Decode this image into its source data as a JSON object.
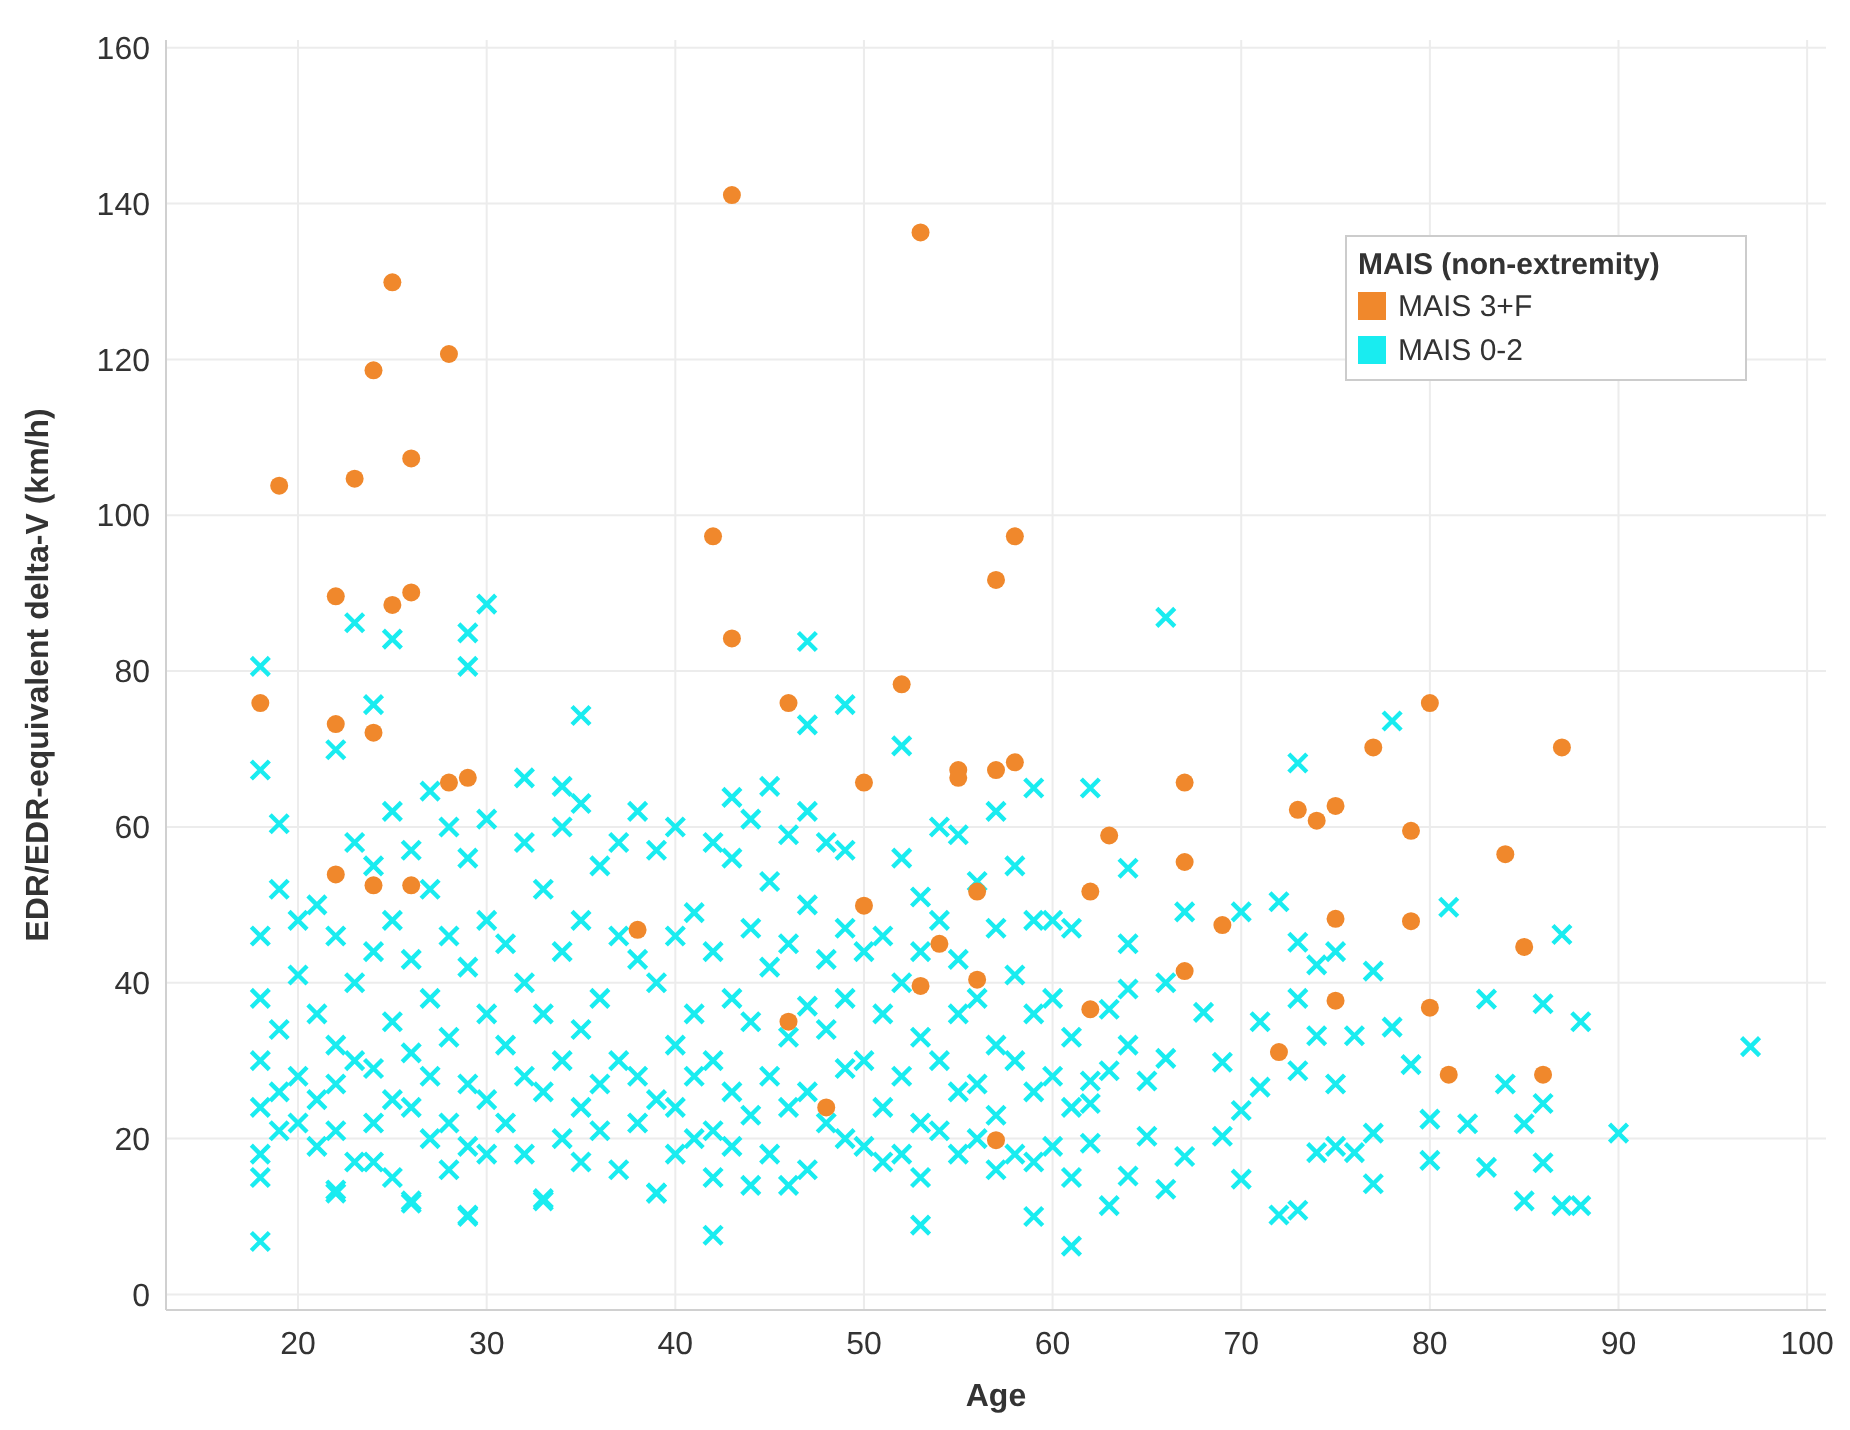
{
  "chart_data": {
    "type": "scatter",
    "xlabel": "Age",
    "ylabel": "EDR/EDR-equivalent delta-V (km/h)",
    "legend_title": "MAIS (non-extremity)",
    "legend": "top right",
    "grid": true,
    "xlim": [
      13,
      101
    ],
    "xticks": [
      20,
      30,
      40,
      50,
      60,
      70,
      80,
      90,
      100
    ],
    "ylim": [
      -2,
      161
    ],
    "yticks": [
      0,
      20,
      40,
      60,
      80,
      100,
      120,
      140,
      160
    ],
    "series": [
      {
        "name": "MAIS 3+F",
        "color": "#f0882c",
        "marker": "circle",
        "x": [
          43,
          53,
          25,
          28,
          24,
          26,
          23,
          19,
          42,
          58,
          57,
          22,
          26,
          25,
          43,
          52,
          18,
          22,
          24,
          46,
          28,
          29,
          50,
          55,
          55,
          57,
          58,
          22,
          24,
          26,
          56,
          62,
          38,
          50,
          54,
          53,
          56,
          62,
          46,
          48,
          57,
          80,
          87,
          77,
          67,
          73,
          74,
          75,
          79,
          84,
          63,
          67,
          69,
          75,
          79,
          85,
          67,
          75,
          80,
          72,
          81,
          86
        ],
        "values": [
          141.1,
          136.3,
          129.9,
          120.7,
          118.6,
          107.3,
          104.7,
          103.8,
          97.3,
          97.3,
          91.7,
          89.6,
          90.1,
          88.5,
          84.2,
          78.3,
          75.9,
          73.2,
          72.1,
          75.9,
          65.7,
          66.3,
          65.7,
          67.3,
          66.3,
          67.3,
          68.3,
          53.9,
          52.5,
          52.5,
          51.7,
          51.7,
          46.8,
          49.9,
          45,
          39.6,
          40.4,
          36.6,
          35,
          24,
          19.8,
          75.9,
          70.2,
          70.2,
          65.7,
          62.2,
          60.8,
          62.7,
          59.5,
          56.5,
          58.9,
          55.5,
          47.4,
          48.2,
          47.9,
          44.6,
          41.5,
          37.7,
          36.8,
          31.1,
          28.2,
          28.2
        ]
      },
      {
        "name": "MAIS 0-2",
        "color": "#19ecf0",
        "marker": "cross",
        "x": [
          30,
          23,
          25,
          29,
          29,
          18,
          47,
          18,
          19,
          24,
          22,
          35,
          47,
          49,
          52,
          18,
          42,
          53,
          59,
          61,
          22,
          26,
          29,
          33,
          39,
          45,
          43,
          32,
          34,
          27,
          59,
          62,
          97,
          90,
          78,
          73,
          66,
          64,
          67,
          70,
          72,
          81,
          87,
          88,
          85,
          88,
          87,
          72,
          73,
          77,
          63,
          83,
          86,
          80,
          66,
          70,
          69,
          78,
          83,
          86,
          77,
          74,
          73,
          75,
          80,
          82,
          85,
          86,
          84,
          79,
          76,
          74,
          71,
          73,
          70,
          71,
          73,
          75,
          77,
          76,
          75,
          74,
          69,
          67,
          65,
          64,
          65,
          66,
          64,
          63,
          62,
          62,
          62,
          64,
          66,
          68,
          63,
          64,
          18,
          18,
          18,
          18,
          18,
          18,
          19,
          19,
          19,
          19,
          20,
          20,
          20,
          20,
          21,
          21,
          21,
          21,
          22,
          22,
          22,
          22,
          22,
          23,
          23,
          23,
          23,
          24,
          24,
          24,
          24,
          24,
          25,
          25,
          25,
          25,
          25,
          26,
          26,
          26,
          26,
          26,
          27,
          27,
          27,
          27,
          28,
          28,
          28,
          28,
          28,
          29,
          29,
          29,
          29,
          29,
          30,
          30,
          30,
          30,
          30,
          31,
          31,
          31,
          32,
          32,
          32,
          32,
          33,
          33,
          33,
          33,
          34,
          34,
          34,
          34,
          35,
          35,
          35,
          35,
          35,
          36,
          36,
          36,
          36,
          37,
          37,
          37,
          37,
          38,
          38,
          38,
          38,
          39,
          39,
          39,
          39,
          40,
          40,
          40,
          40,
          40,
          41,
          41,
          41,
          41,
          42,
          42,
          42,
          42,
          42,
          43,
          43,
          43,
          43,
          44,
          44,
          44,
          44,
          44,
          45,
          45,
          45,
          45,
          46,
          46,
          46,
          46,
          46,
          47,
          47,
          47,
          47,
          47,
          48,
          48,
          48,
          48,
          49,
          49,
          49,
          49,
          49,
          50,
          50,
          50,
          51,
          51,
          51,
          51,
          52,
          52,
          52,
          52,
          53,
          53,
          53,
          53,
          53,
          54,
          54,
          54,
          54,
          55,
          55,
          55,
          55,
          55,
          56,
          56,
          56,
          56,
          57,
          57,
          57,
          57,
          57,
          58,
          58,
          58,
          58,
          59,
          59,
          59,
          59,
          60,
          60,
          60,
          60,
          61,
          61,
          61,
          61
        ],
        "values": [
          88.6,
          86.2,
          84.1,
          84.9,
          80.6,
          80.6,
          83.8,
          67.3,
          60.4,
          75.7,
          69.9,
          74.3,
          73.1,
          75.7,
          70.4,
          6.8,
          7.6,
          8.9,
          10,
          6.2,
          13.4,
          11.7,
          10.2,
          12.3,
          13,
          65.2,
          63.8,
          66.3,
          65.2,
          64.6,
          65,
          65,
          31.8,
          20.7,
          73.6,
          68.2,
          86.9,
          54.7,
          49.1,
          49.1,
          50.4,
          49.7,
          46.2,
          35,
          12,
          11.4,
          11.4,
          10.2,
          10.8,
          14.2,
          11.4,
          16.3,
          16.9,
          17.2,
          13.5,
          14.8,
          29.8,
          34.3,
          37.9,
          37.3,
          41.5,
          42.3,
          45.2,
          44,
          22.5,
          21.9,
          21.9,
          24.5,
          27,
          29.5,
          33.2,
          33.2,
          35,
          38,
          23.6,
          26.6,
          28.7,
          27,
          20.7,
          18.2,
          19,
          18.2,
          20.3,
          17.7,
          20.3,
          15.2,
          27.4,
          30.3,
          32,
          28.7,
          24.5,
          19.4,
          27.4,
          39.2,
          40,
          36.2,
          36.6,
          45,
          46,
          38,
          30,
          24,
          18,
          15,
          52,
          34,
          26,
          21,
          48,
          41,
          28,
          22,
          50,
          36,
          25,
          19,
          46,
          32,
          27,
          21,
          13,
          58,
          40,
          30,
          17,
          55,
          44,
          29,
          22,
          17,
          62,
          48,
          35,
          25,
          15,
          57,
          43,
          31,
          24,
          12,
          52,
          38,
          28,
          20,
          60,
          46,
          33,
          22,
          16,
          56,
          42,
          27,
          19,
          10,
          61,
          48,
          36,
          25,
          18,
          45,
          32,
          22,
          58,
          40,
          28,
          18,
          52,
          36,
          26,
          12,
          60,
          44,
          30,
          20,
          63,
          48,
          34,
          24,
          17,
          55,
          38,
          27,
          21,
          58,
          46,
          30,
          16,
          62,
          43,
          28,
          22,
          57,
          40,
          25,
          13,
          60,
          46,
          32,
          24,
          18,
          49,
          36,
          28,
          20,
          58,
          44,
          30,
          21,
          15,
          56,
          38,
          26,
          19,
          61,
          47,
          35,
          23,
          14,
          53,
          42,
          28,
          18,
          59,
          45,
          33,
          24,
          14,
          62,
          50,
          37,
          26,
          16,
          58,
          43,
          34,
          22,
          57,
          47,
          38,
          29,
          20,
          44,
          30,
          19,
          46,
          36,
          24,
          17,
          56,
          40,
          28,
          18,
          51,
          44,
          33,
          22,
          15,
          60,
          48,
          30,
          21,
          59,
          43,
          36,
          26,
          18,
          53,
          38,
          27,
          20,
          62,
          47,
          32,
          23,
          16,
          55,
          41,
          30,
          18,
          48,
          36,
          26,
          17,
          48,
          38,
          28,
          19,
          47,
          33,
          24,
          15
        ]
      }
    ]
  }
}
